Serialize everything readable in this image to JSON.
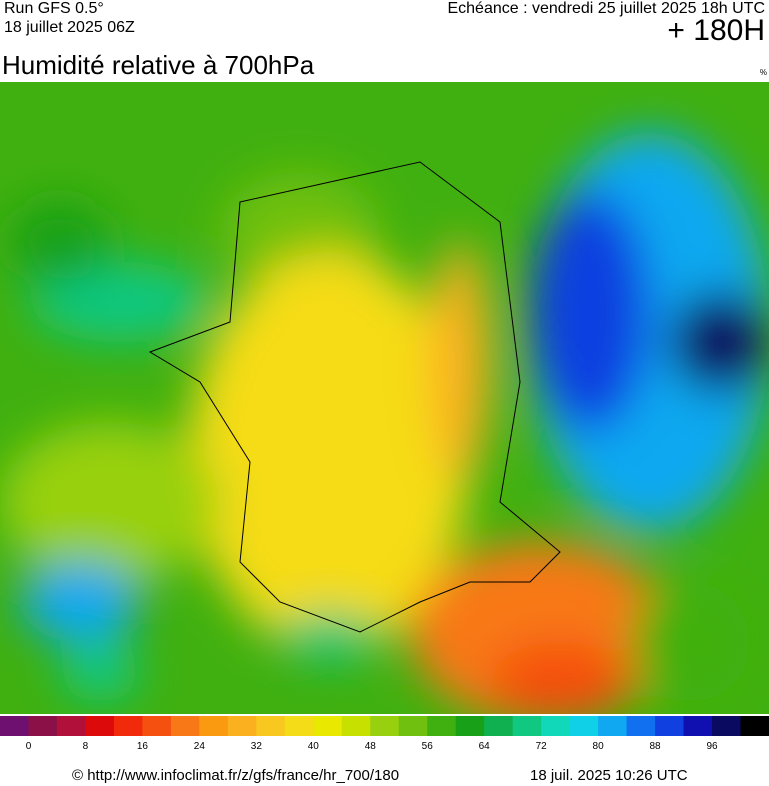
{
  "header": {
    "model": "Run GFS 0.5°",
    "run": "18 juillet 2025 06Z",
    "valid": "Echéance : vendredi 25 juillet 2025 18h UTC",
    "lead": "+ 180H"
  },
  "title": "Humidité relative à 700hPa",
  "unit": "%",
  "colorbar": {
    "colors": [
      "#6e1070",
      "#8c1048",
      "#b0103a",
      "#dc0a0a",
      "#f02a0a",
      "#f55010",
      "#f87818",
      "#fa9a10",
      "#fbb020",
      "#f9c820",
      "#f5dc18",
      "#e8e800",
      "#c8e000",
      "#98d010",
      "#70c010",
      "#40b010",
      "#18a018",
      "#10b050",
      "#10c880",
      "#10d8b8",
      "#10d0e8",
      "#10a8f0",
      "#1070f0",
      "#1040e0",
      "#1010b0",
      "#0a0a60",
      "#000000"
    ],
    "labels": [
      0,
      8,
      16,
      24,
      32,
      40,
      48,
      56,
      64,
      72,
      80,
      88,
      96
    ]
  },
  "footer": {
    "source": "© http://www.infoclimat.fr/z/gfs/france/hr_700/180",
    "generated": "18 juil. 2025 10:26 UTC"
  }
}
